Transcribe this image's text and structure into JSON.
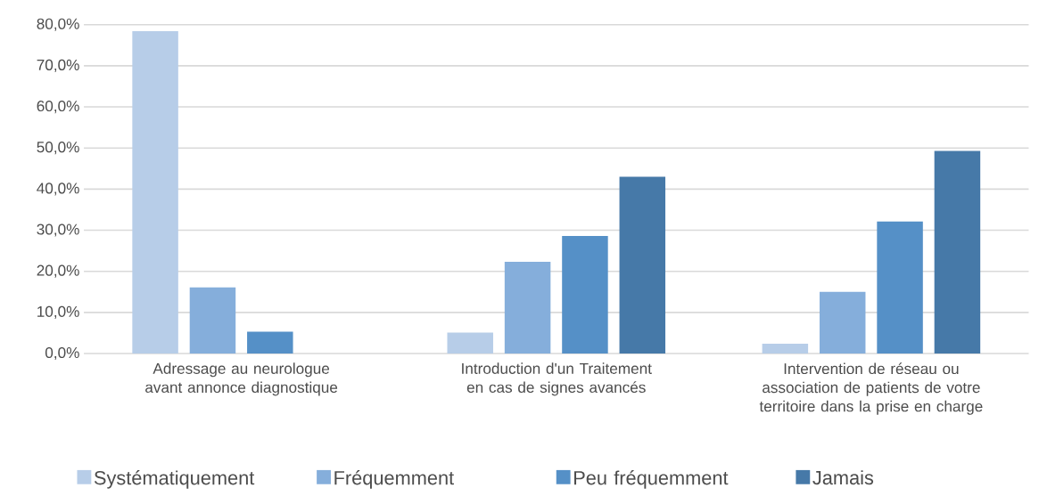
{
  "chart_data": {
    "type": "bar",
    "categories": [
      "Adressage au neurologue avant annonce diagnostique",
      "Introduction d'un Traitement en cas de signes avancés",
      "Intervention de réseau ou association de patients de votre territoire dans la prise en charge"
    ],
    "series": [
      {
        "name": "Systématiquement",
        "color": "#b7cde8",
        "values": [
          78.4,
          5.1,
          2.4
        ]
      },
      {
        "name": "Fréquemment",
        "color": "#85aedb",
        "values": [
          16.1,
          22.3,
          15.0
        ]
      },
      {
        "name": "Peu fréquemment",
        "color": "#5590c7",
        "values": [
          5.3,
          28.6,
          32.1
        ]
      },
      {
        "name": "Jamais",
        "color": "#4679a8",
        "values": [
          0,
          43.0,
          49.3
        ]
      }
    ],
    "ylim": [
      0,
      80
    ],
    "yticks": [
      {
        "value": 0,
        "label": "0,0%"
      },
      {
        "value": 10,
        "label": "10,0%"
      },
      {
        "value": 20,
        "label": "20,0%"
      },
      {
        "value": 30,
        "label": "30,0%"
      },
      {
        "value": 40,
        "label": "40,0%"
      },
      {
        "value": 50,
        "label": "50,0%"
      },
      {
        "value": 60,
        "label": "60,0%"
      },
      {
        "value": 70,
        "label": "70,0%"
      },
      {
        "value": 80,
        "label": "80,0%"
      }
    ],
    "grid": "y",
    "legend": "bottom"
  }
}
